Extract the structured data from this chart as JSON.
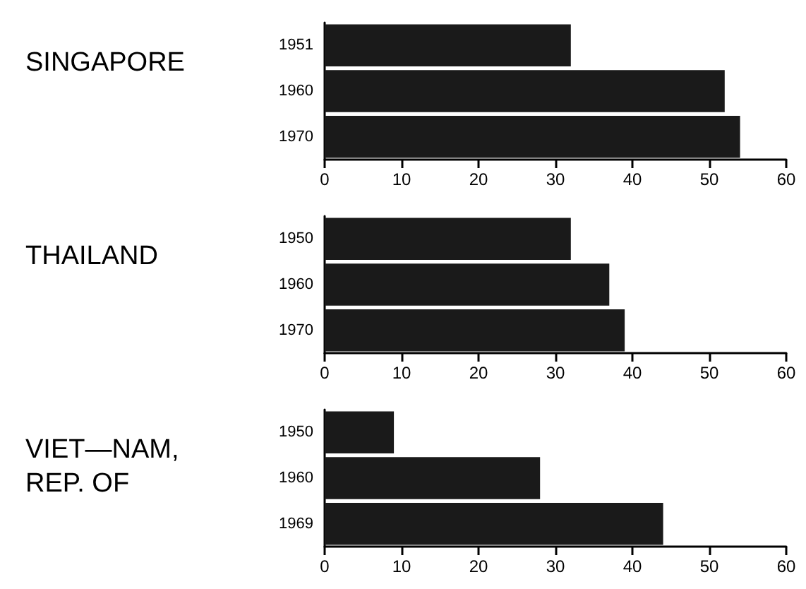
{
  "chart_data": [
    {
      "type": "bar",
      "orientation": "horizontal",
      "title": "SINGAPORE",
      "categories": [
        "1951",
        "1960",
        "1970"
      ],
      "values": [
        32,
        52,
        54
      ],
      "color": "#1a1a1a",
      "xlim": [
        0,
        60
      ],
      "xticks": [
        0,
        10,
        20,
        30,
        40,
        50,
        60
      ],
      "grid": false
    },
    {
      "type": "bar",
      "orientation": "horizontal",
      "title": "THAILAND",
      "categories": [
        "1950",
        "1960",
        "1970"
      ],
      "values": [
        32,
        37,
        39
      ],
      "color": "#1a1a1a",
      "xlim": [
        0,
        60
      ],
      "xticks": [
        0,
        10,
        20,
        30,
        40,
        50,
        60
      ],
      "grid": false
    },
    {
      "type": "bar",
      "orientation": "horizontal",
      "title": "VIET—NAM, REP. OF",
      "categories": [
        "1950",
        "1960",
        "1969"
      ],
      "values": [
        9,
        28,
        44
      ],
      "color": "#1a1a1a",
      "xlim": [
        0,
        60
      ],
      "xticks": [
        0,
        10,
        20,
        30,
        40,
        50,
        60
      ],
      "grid": false
    }
  ]
}
